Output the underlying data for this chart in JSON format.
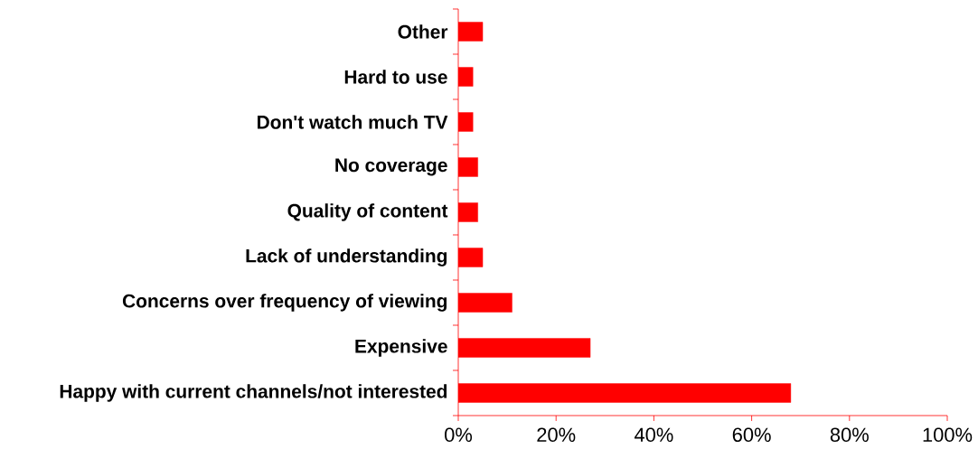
{
  "chart_data": {
    "type": "bar",
    "orientation": "horizontal",
    "categories": [
      "Other",
      "Hard to use",
      "Don't watch much TV",
      "No coverage",
      "Quality of content",
      "Lack of understanding",
      "Concerns over frequency of viewing",
      "Expensive",
      "Happy with current channels/not interested"
    ],
    "values": [
      5,
      3,
      3,
      4,
      4,
      5,
      11,
      27,
      68
    ],
    "color": "#ff0000",
    "xlim": [
      0,
      100
    ],
    "xticks": [
      {
        "value": 0,
        "label": "0%"
      },
      {
        "value": 20,
        "label": "20%"
      },
      {
        "value": 40,
        "label": "40%"
      },
      {
        "value": 60,
        "label": "60%"
      },
      {
        "value": 80,
        "label": "80%"
      },
      {
        "value": 100,
        "label": "100%"
      }
    ],
    "grid": false
  }
}
